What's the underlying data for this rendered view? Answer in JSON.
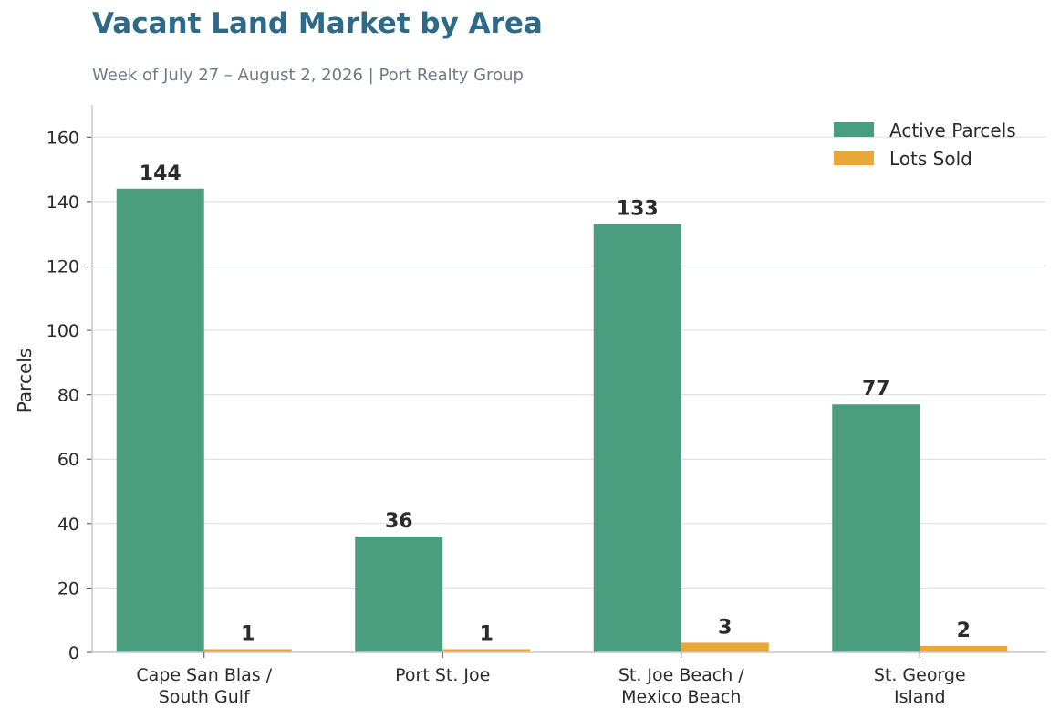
{
  "title": "Vacant Land Market by Area",
  "subtitle": "Week of July 27 – August 2, 2026  |  Port Realty Group",
  "colors": {
    "active": "#4a9d7f",
    "sold": "#e8a838",
    "title": "#2e6a87",
    "grid": "#dde1e4"
  },
  "chart_data": {
    "type": "bar",
    "title": "Vacant Land Market by Area",
    "subtitle": "Week of July 27 – August 2, 2026  |  Port Realty Group",
    "xlabel": "",
    "ylabel": "Parcels",
    "ylim": [
      0,
      170
    ],
    "yticks": [
      0,
      20,
      40,
      60,
      80,
      100,
      120,
      140,
      160
    ],
    "categories": [
      [
        "Cape San Blas /",
        "South Gulf"
      ],
      [
        "Port St. Joe"
      ],
      [
        "St. Joe Beach /",
        "Mexico Beach"
      ],
      [
        "St. George",
        "Island"
      ]
    ],
    "series": [
      {
        "name": "Active Parcels",
        "values": [
          144,
          36,
          133,
          77
        ]
      },
      {
        "name": "Lots Sold",
        "values": [
          1,
          1,
          3,
          2
        ]
      }
    ],
    "grid": true,
    "legend": "top-right"
  }
}
